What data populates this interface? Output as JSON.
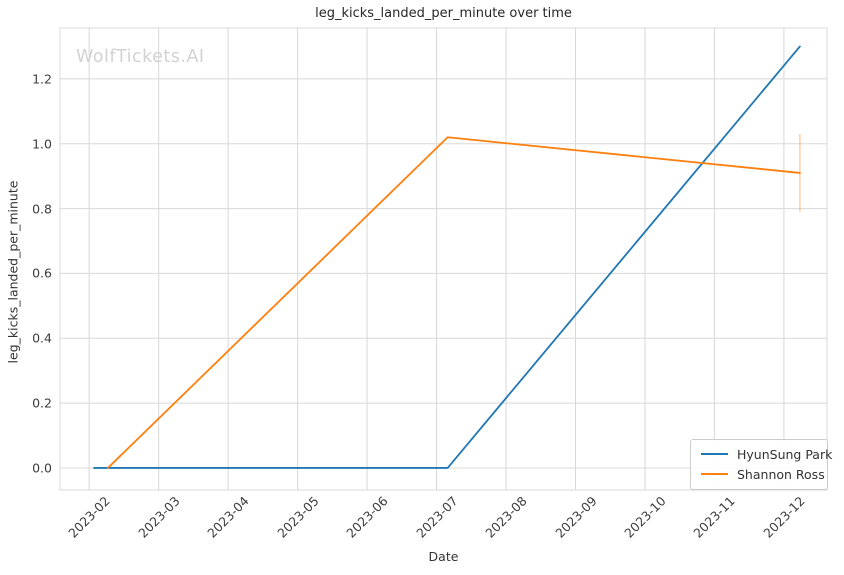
{
  "page": {
    "watermark": "WolfTickets.AI"
  },
  "chart_data": {
    "type": "line",
    "title": "leg_kicks_landed_per_minute over time",
    "xlabel": "Date",
    "ylabel": "leg_kicks_landed_per_minute",
    "x_tick_labels": [
      "2023-02",
      "2023-03",
      "2023-04",
      "2023-05",
      "2023-06",
      "2023-07",
      "2023-08",
      "2023-09",
      "2023-10",
      "2023-11",
      "2023-12"
    ],
    "x_tick_positions": [
      1,
      2,
      3,
      4,
      5,
      6,
      7,
      8,
      9,
      10,
      11
    ],
    "x_unit": "month index (1 = 2023-02 ... 11 = 2023-12)",
    "y_ticks": [
      0.0,
      0.2,
      0.4,
      0.6,
      0.8,
      1.0,
      1.2
    ],
    "y_tick_labels": [
      "0.0",
      "0.2",
      "0.4",
      "0.6",
      "0.8",
      "1.0",
      "1.2"
    ],
    "xlim": [
      0.58,
      11.62
    ],
    "ylim": [
      -0.068,
      1.357
    ],
    "grid": true,
    "legend_position": "lower right",
    "colors": {
      "grid": "#d8d8d8",
      "axis_border": "#d8d8d8"
    },
    "series": [
      {
        "name": "HyunSung Park",
        "color": "#1f77b4",
        "x": [
          1.07,
          6.16,
          11.23
        ],
        "dates_approx": [
          "2023-02-03",
          "2023-07-05",
          "2023-12-08"
        ],
        "values": [
          0.0,
          0.0,
          1.3
        ]
      },
      {
        "name": "Shannon Ross",
        "color": "#ff7f0e",
        "x": [
          1.27,
          6.16,
          11.23
        ],
        "dates_approx": [
          "2023-02-09",
          "2023-07-05",
          "2023-12-08"
        ],
        "values": [
          0.0,
          1.02,
          0.91
        ],
        "error_bar": {
          "at_x": 11.23,
          "low": 0.79,
          "high": 1.03,
          "color": "rgba(255,127,14,0.35)"
        }
      }
    ]
  }
}
